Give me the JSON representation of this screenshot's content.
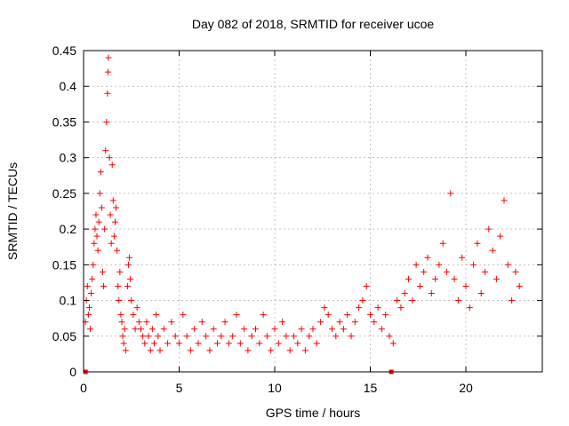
{
  "chart_data": {
    "type": "scatter",
    "title": "Day 082 of 2018, SRMTID for receiver ucoe",
    "xlabel": "GPS time / hours",
    "ylabel": "SRMTID / TECUs",
    "xlim": [
      0,
      24
    ],
    "ylim": [
      0,
      0.45
    ],
    "xticks": [
      0,
      5,
      10,
      15,
      20
    ],
    "yticks": [
      0,
      0.05,
      0.1,
      0.15,
      0.2,
      0.25,
      0.3,
      0.35,
      0.4,
      0.45
    ],
    "ytick_labels": [
      "0",
      "0.05",
      "0.1",
      "0.15",
      "0.2",
      "0.25",
      "0.3",
      "0.35",
      "0.4",
      "0.45"
    ],
    "grid": true,
    "marker": "+",
    "marker_color": "#ff0000",
    "zero_markers": [
      0.1,
      16.1
    ],
    "series": [
      {
        "name": "SRMTID",
        "points": [
          [
            0.1,
            0.07
          ],
          [
            0.15,
            0.1
          ],
          [
            0.2,
            0.12
          ],
          [
            0.25,
            0.08
          ],
          [
            0.3,
            0.09
          ],
          [
            0.35,
            0.06
          ],
          [
            0.4,
            0.11
          ],
          [
            0.45,
            0.13
          ],
          [
            0.5,
            0.15
          ],
          [
            0.55,
            0.18
          ],
          [
            0.6,
            0.2
          ],
          [
            0.65,
            0.22
          ],
          [
            0.7,
            0.19
          ],
          [
            0.75,
            0.17
          ],
          [
            0.8,
            0.21
          ],
          [
            0.85,
            0.25
          ],
          [
            0.9,
            0.28
          ],
          [
            0.95,
            0.23
          ],
          [
            1.0,
            0.14
          ],
          [
            1.05,
            0.12
          ],
          [
            1.1,
            0.2
          ],
          [
            1.15,
            0.31
          ],
          [
            1.2,
            0.35
          ],
          [
            1.25,
            0.39
          ],
          [
            1.28,
            0.42
          ],
          [
            1.3,
            0.44
          ],
          [
            1.35,
            0.3
          ],
          [
            1.4,
            0.22
          ],
          [
            1.45,
            0.18
          ],
          [
            1.5,
            0.29
          ],
          [
            1.55,
            0.24
          ],
          [
            1.6,
            0.19
          ],
          [
            1.65,
            0.21
          ],
          [
            1.7,
            0.23
          ],
          [
            1.75,
            0.17
          ],
          [
            1.8,
            0.12
          ],
          [
            1.85,
            0.1
          ],
          [
            1.9,
            0.14
          ],
          [
            1.95,
            0.08
          ],
          [
            2.0,
            0.07
          ],
          [
            2.05,
            0.05
          ],
          [
            2.1,
            0.04
          ],
          [
            2.15,
            0.06
          ],
          [
            2.2,
            0.03
          ],
          [
            2.3,
            0.12
          ],
          [
            2.35,
            0.15
          ],
          [
            2.4,
            0.16
          ],
          [
            2.45,
            0.13
          ],
          [
            2.5,
            0.1
          ],
          [
            2.6,
            0.08
          ],
          [
            2.7,
            0.06
          ],
          [
            2.8,
            0.09
          ],
          [
            2.9,
            0.07
          ],
          [
            3.0,
            0.06
          ],
          [
            3.1,
            0.05
          ],
          [
            3.2,
            0.04
          ],
          [
            3.3,
            0.07
          ],
          [
            3.4,
            0.05
          ],
          [
            3.5,
            0.03
          ],
          [
            3.6,
            0.06
          ],
          [
            3.7,
            0.04
          ],
          [
            3.8,
            0.08
          ],
          [
            3.9,
            0.05
          ],
          [
            4.0,
            0.03
          ],
          [
            4.2,
            0.06
          ],
          [
            4.4,
            0.04
          ],
          [
            4.6,
            0.07
          ],
          [
            4.8,
            0.05
          ],
          [
            5.0,
            0.04
          ],
          [
            5.2,
            0.08
          ],
          [
            5.4,
            0.05
          ],
          [
            5.6,
            0.03
          ],
          [
            5.8,
            0.06
          ],
          [
            6.0,
            0.04
          ],
          [
            6.2,
            0.07
          ],
          [
            6.4,
            0.05
          ],
          [
            6.6,
            0.03
          ],
          [
            6.8,
            0.06
          ],
          [
            7.0,
            0.04
          ],
          [
            7.2,
            0.05
          ],
          [
            7.4,
            0.07
          ],
          [
            7.6,
            0.04
          ],
          [
            7.8,
            0.05
          ],
          [
            8.0,
            0.08
          ],
          [
            8.2,
            0.04
          ],
          [
            8.4,
            0.06
          ],
          [
            8.6,
            0.03
          ],
          [
            8.8,
            0.05
          ],
          [
            9.0,
            0.06
          ],
          [
            9.2,
            0.04
          ],
          [
            9.4,
            0.08
          ],
          [
            9.6,
            0.05
          ],
          [
            9.8,
            0.03
          ],
          [
            10.0,
            0.06
          ],
          [
            10.2,
            0.04
          ],
          [
            10.4,
            0.07
          ],
          [
            10.6,
            0.05
          ],
          [
            10.8,
            0.03
          ],
          [
            11.0,
            0.05
          ],
          [
            11.2,
            0.04
          ],
          [
            11.4,
            0.06
          ],
          [
            11.6,
            0.03
          ],
          [
            11.8,
            0.05
          ],
          [
            12.0,
            0.06
          ],
          [
            12.2,
            0.04
          ],
          [
            12.4,
            0.07
          ],
          [
            12.6,
            0.09
          ],
          [
            12.8,
            0.08
          ],
          [
            13.0,
            0.06
          ],
          [
            13.2,
            0.05
          ],
          [
            13.4,
            0.07
          ],
          [
            13.6,
            0.06
          ],
          [
            13.8,
            0.08
          ],
          [
            14.0,
            0.05
          ],
          [
            14.2,
            0.07
          ],
          [
            14.4,
            0.09
          ],
          [
            14.6,
            0.1
          ],
          [
            14.8,
            0.12
          ],
          [
            15.0,
            0.08
          ],
          [
            15.2,
            0.07
          ],
          [
            15.4,
            0.09
          ],
          [
            15.6,
            0.06
          ],
          [
            15.8,
            0.08
          ],
          [
            16.0,
            0.05
          ],
          [
            16.2,
            0.04
          ],
          [
            16.4,
            0.1
          ],
          [
            16.6,
            0.09
          ],
          [
            16.8,
            0.11
          ],
          [
            17.0,
            0.13
          ],
          [
            17.2,
            0.1
          ],
          [
            17.4,
            0.15
          ],
          [
            17.6,
            0.12
          ],
          [
            17.8,
            0.14
          ],
          [
            18.0,
            0.16
          ],
          [
            18.2,
            0.11
          ],
          [
            18.4,
            0.13
          ],
          [
            18.6,
            0.15
          ],
          [
            18.8,
            0.18
          ],
          [
            19.0,
            0.14
          ],
          [
            19.2,
            0.25
          ],
          [
            19.4,
            0.13
          ],
          [
            19.6,
            0.1
          ],
          [
            19.8,
            0.16
          ],
          [
            20.0,
            0.12
          ],
          [
            20.2,
            0.09
          ],
          [
            20.4,
            0.15
          ],
          [
            20.6,
            0.18
          ],
          [
            20.8,
            0.11
          ],
          [
            21.0,
            0.14
          ],
          [
            21.2,
            0.2
          ],
          [
            21.4,
            0.17
          ],
          [
            21.6,
            0.13
          ],
          [
            21.8,
            0.19
          ],
          [
            22.0,
            0.24
          ],
          [
            22.2,
            0.15
          ],
          [
            22.4,
            0.1
          ],
          [
            22.6,
            0.14
          ],
          [
            22.8,
            0.12
          ]
        ]
      }
    ]
  }
}
